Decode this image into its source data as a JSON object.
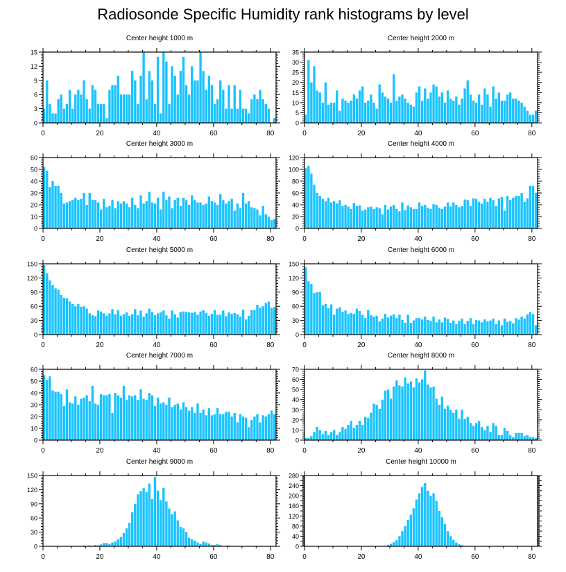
{
  "figure_title": "Radiosonde Specific Humidity rank histograms by level",
  "chart_data": [
    {
      "type": "bar",
      "title": "Center height 1000 m",
      "x_start": 0,
      "xlim": [
        0,
        82
      ],
      "ylim": [
        0,
        15
      ],
      "yticks": [
        0,
        3,
        6,
        9,
        12,
        15
      ],
      "xticks": [
        0,
        20,
        40,
        60,
        80
      ],
      "color": "#19c3ff",
      "values": [
        3,
        9,
        4,
        2,
        2,
        5,
        6,
        3,
        4,
        7,
        3,
        6,
        7,
        6,
        9,
        5,
        3,
        8,
        7,
        4,
        4,
        4,
        1,
        7,
        8,
        8,
        10,
        6,
        6,
        6,
        6,
        11,
        9,
        4,
        10,
        15,
        5,
        11,
        9,
        4,
        14,
        2,
        15,
        13,
        4,
        12,
        10,
        6,
        11,
        14,
        8,
        6,
        12,
        9,
        9,
        15,
        11,
        7,
        10,
        8,
        4,
        5,
        9,
        7,
        3,
        8,
        3,
        8,
        3,
        7,
        3,
        3,
        2,
        5,
        6,
        5,
        7,
        5,
        4,
        3,
        0,
        1
      ]
    },
    {
      "type": "bar",
      "title": "Center height 2000 m",
      "x_start": 0,
      "xlim": [
        0,
        82
      ],
      "ylim": [
        0,
        35
      ],
      "yticks": [
        0,
        5,
        10,
        15,
        20,
        25,
        30,
        35
      ],
      "xticks": [
        0,
        20,
        40,
        60,
        80
      ],
      "color": "#19c3ff",
      "values": [
        4,
        31,
        20,
        28,
        16,
        15,
        10,
        20,
        9,
        10,
        10,
        16,
        6,
        12,
        11,
        10,
        11,
        14,
        12,
        16,
        18,
        10,
        11,
        14,
        10,
        7,
        19,
        15,
        13,
        12,
        10,
        24,
        11,
        13,
        14,
        12,
        10,
        9,
        8,
        15,
        18,
        11,
        17,
        12,
        15,
        19,
        18,
        13,
        15,
        10,
        16,
        12,
        11,
        13,
        9,
        12,
        17,
        21,
        14,
        11,
        10,
        14,
        9,
        17,
        14,
        8,
        18,
        12,
        15,
        11,
        11,
        14,
        15,
        12,
        12,
        11,
        10,
        8,
        6,
        4,
        4,
        6
      ]
    },
    {
      "type": "bar",
      "title": "Center height 3000 m",
      "x_start": 0,
      "xlim": [
        0,
        82
      ],
      "ylim": [
        0,
        60
      ],
      "yticks": [
        0,
        10,
        20,
        30,
        40,
        50,
        60
      ],
      "xticks": [
        0,
        20,
        40,
        60,
        80
      ],
      "color": "#19c3ff",
      "values": [
        52,
        49,
        35,
        40,
        36,
        36,
        30,
        21,
        22,
        23,
        24,
        26,
        24,
        25,
        30,
        20,
        30,
        24,
        24,
        22,
        16,
        25,
        18,
        19,
        24,
        17,
        23,
        21,
        23,
        21,
        18,
        26,
        20,
        17,
        28,
        21,
        23,
        31,
        22,
        21,
        26,
        16,
        31,
        24,
        27,
        17,
        24,
        26,
        19,
        26,
        24,
        20,
        28,
        24,
        22,
        22,
        20,
        21,
        27,
        23,
        22,
        20,
        29,
        24,
        21,
        23,
        25,
        15,
        21,
        17,
        30,
        21,
        23,
        18,
        17,
        16,
        11,
        19,
        12,
        10,
        7,
        8
      ]
    },
    {
      "type": "bar",
      "title": "Center height 4000 m",
      "x_start": 0,
      "xlim": [
        0,
        82
      ],
      "ylim": [
        0,
        120
      ],
      "yticks": [
        0,
        20,
        40,
        60,
        80,
        100,
        120
      ],
      "xticks": [
        0,
        20,
        40,
        60,
        80
      ],
      "color": "#19c3ff",
      "values": [
        102,
        106,
        93,
        74,
        60,
        55,
        50,
        46,
        52,
        44,
        46,
        42,
        48,
        38,
        40,
        37,
        33,
        43,
        38,
        39,
        30,
        32,
        36,
        37,
        33,
        36,
        34,
        24,
        40,
        32,
        37,
        40,
        33,
        29,
        44,
        31,
        39,
        36,
        33,
        33,
        44,
        38,
        40,
        35,
        33,
        41,
        40,
        35,
        33,
        37,
        44,
        37,
        44,
        40,
        36,
        38,
        49,
        48,
        38,
        51,
        50,
        45,
        42,
        50,
        45,
        52,
        48,
        38,
        51,
        53,
        30,
        55,
        48,
        52,
        55,
        55,
        60,
        45,
        51,
        72,
        72,
        60
      ]
    },
    {
      "type": "bar",
      "title": "Center height 5000 m",
      "x_start": 0,
      "xlim": [
        0,
        82
      ],
      "ylim": [
        0,
        150
      ],
      "yticks": [
        0,
        30,
        60,
        90,
        120,
        150
      ],
      "xticks": [
        0,
        20,
        40,
        60,
        80
      ],
      "color": "#19c3ff",
      "values": [
        147,
        130,
        115,
        105,
        98,
        95,
        84,
        78,
        77,
        70,
        65,
        60,
        65,
        59,
        60,
        55,
        45,
        41,
        39,
        51,
        49,
        45,
        40,
        45,
        54,
        43,
        52,
        40,
        43,
        47,
        40,
        43,
        54,
        41,
        51,
        38,
        45,
        55,
        48,
        41,
        45,
        47,
        51,
        41,
        34,
        51,
        43,
        36,
        48,
        49,
        48,
        47,
        46,
        48,
        42,
        49,
        52,
        46,
        40,
        44,
        52,
        42,
        42,
        51,
        39,
        47,
        44,
        46,
        43,
        38,
        53,
        32,
        40,
        52,
        52,
        63,
        57,
        60,
        67,
        70,
        57,
        58
      ]
    },
    {
      "type": "bar",
      "title": "Center height 6000 m",
      "x_start": 0,
      "xlim": [
        0,
        82
      ],
      "ylim": [
        0,
        150
      ],
      "yticks": [
        0,
        30,
        60,
        90,
        120,
        150
      ],
      "xticks": [
        0,
        20,
        40,
        60,
        80
      ],
      "color": "#19c3ff",
      "values": [
        143,
        113,
        107,
        88,
        90,
        90,
        62,
        65,
        56,
        64,
        42,
        55,
        58,
        48,
        51,
        44,
        46,
        44,
        55,
        50,
        42,
        35,
        52,
        41,
        38,
        40,
        28,
        34,
        44,
        36,
        40,
        43,
        35,
        42,
        31,
        25,
        42,
        25,
        30,
        35,
        35,
        32,
        38,
        31,
        29,
        38,
        26,
        32,
        26,
        36,
        33,
        25,
        30,
        22,
        29,
        34,
        22,
        29,
        35,
        22,
        31,
        30,
        26,
        32,
        28,
        30,
        34,
        22,
        30,
        20,
        34,
        27,
        29,
        24,
        35,
        32,
        38,
        34,
        43,
        48,
        44,
        20
      ]
    },
    {
      "type": "bar",
      "title": "Center height 7000 m",
      "x_start": 0,
      "xlim": [
        0,
        82
      ],
      "ylim": [
        0,
        60
      ],
      "yticks": [
        0,
        10,
        20,
        30,
        40,
        50,
        60
      ],
      "xticks": [
        0,
        20,
        40,
        60,
        80
      ],
      "color": "#19c3ff",
      "values": [
        55,
        51,
        54,
        42,
        41,
        41,
        39,
        29,
        43,
        32,
        31,
        37,
        30,
        35,
        36,
        38,
        33,
        46,
        31,
        30,
        39,
        38,
        38,
        39,
        23,
        40,
        38,
        36,
        46,
        34,
        38,
        37,
        38,
        34,
        43,
        35,
        34,
        40,
        38,
        29,
        36,
        31,
        32,
        30,
        36,
        28,
        30,
        31,
        26,
        32,
        28,
        25,
        28,
        23,
        31,
        23,
        26,
        21,
        27,
        21,
        22,
        27,
        22,
        22,
        24,
        24,
        20,
        23,
        15,
        22,
        20,
        19,
        11,
        17,
        20,
        22,
        15,
        21,
        20,
        22,
        25,
        22
      ]
    },
    {
      "type": "bar",
      "title": "Center height 8000 m",
      "x_start": 0,
      "xlim": [
        0,
        82
      ],
      "ylim": [
        0,
        70
      ],
      "yticks": [
        0,
        10,
        20,
        30,
        40,
        50,
        60,
        70
      ],
      "xticks": [
        0,
        20,
        40,
        60,
        80
      ],
      "color": "#19c3ff",
      "values": [
        2,
        2,
        4,
        8,
        13,
        10,
        6,
        9,
        5,
        8,
        10,
        5,
        8,
        13,
        11,
        15,
        19,
        12,
        15,
        19,
        15,
        23,
        22,
        27,
        36,
        35,
        31,
        40,
        49,
        50,
        41,
        53,
        59,
        54,
        53,
        62,
        56,
        58,
        52,
        61,
        57,
        60,
        69,
        55,
        52,
        53,
        41,
        35,
        43,
        31,
        34,
        30,
        27,
        30,
        21,
        30,
        21,
        23,
        17,
        14,
        17,
        19,
        13,
        10,
        14,
        8,
        17,
        14,
        5,
        5,
        12,
        9,
        5,
        3,
        7,
        7,
        7,
        4,
        5,
        3,
        3,
        2
      ]
    },
    {
      "type": "bar",
      "title": "Center height 9000 m",
      "x_start": 0,
      "xlim": [
        0,
        82
      ],
      "ylim": [
        0,
        150
      ],
      "yticks": [
        0,
        30,
        60,
        90,
        120,
        150
      ],
      "xticks": [
        0,
        20,
        40,
        60,
        80
      ],
      "color": "#19c3ff",
      "values": [
        0,
        0,
        0,
        0,
        0,
        0,
        0,
        0,
        0,
        0,
        0,
        1,
        0,
        0,
        2,
        1,
        2,
        1,
        3,
        2,
        4,
        7,
        7,
        5,
        8,
        10,
        15,
        20,
        28,
        38,
        50,
        72,
        90,
        110,
        117,
        123,
        115,
        133,
        100,
        147,
        118,
        98,
        124,
        95,
        80,
        68,
        74,
        55,
        41,
        38,
        30,
        18,
        15,
        12,
        8,
        5,
        10,
        8,
        6,
        3,
        3,
        5,
        3,
        1,
        1,
        2,
        1,
        0,
        0,
        0,
        0,
        0,
        0,
        0,
        0,
        0,
        0,
        0,
        0,
        0,
        0,
        0
      ]
    },
    {
      "type": "bar",
      "title": "Center height 10000 m",
      "x_start": 0,
      "xlim": [
        0,
        82
      ],
      "ylim": [
        0,
        280
      ],
      "yticks": [
        0,
        20,
        40,
        60,
        80,
        100,
        120,
        140,
        160,
        180,
        200,
        220,
        240,
        260,
        280
      ],
      "ytick_labels": [
        0,
        40,
        80,
        120,
        160,
        200,
        240,
        280
      ],
      "xticks": [
        0,
        20,
        40,
        60,
        80
      ],
      "color": "#19c3ff",
      "values": [
        0,
        0,
        0,
        0,
        0,
        0,
        0,
        0,
        0,
        0,
        0,
        0,
        0,
        0,
        0,
        0,
        0,
        0,
        0,
        0,
        0,
        0,
        0,
        0,
        0,
        0,
        0,
        0,
        2,
        6,
        10,
        16,
        24,
        40,
        60,
        80,
        105,
        125,
        150,
        185,
        210,
        235,
        250,
        220,
        200,
        210,
        180,
        140,
        115,
        88,
        60,
        40,
        25,
        15,
        8,
        5,
        2,
        1,
        0,
        0,
        0,
        0,
        0,
        0,
        0,
        0,
        0,
        0,
        0,
        0,
        0,
        0,
        0,
        0,
        0,
        0,
        0,
        0,
        0,
        0,
        0,
        0
      ]
    }
  ]
}
